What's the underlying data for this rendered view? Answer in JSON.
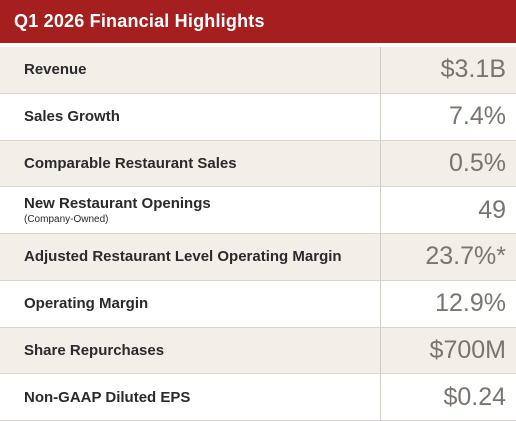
{
  "header": {
    "title": "Q1 2026 Financial Highlights"
  },
  "table": {
    "rows": [
      {
        "label": "Revenue",
        "value": "$3.1B"
      },
      {
        "label": "Sales Growth",
        "value": "7.4%"
      },
      {
        "label": "Comparable Restaurant Sales",
        "value": "0.5%"
      },
      {
        "label": "New Restaurant Openings",
        "note": "(Company-Owned)",
        "value": "49"
      },
      {
        "label": "Adjusted Restaurant Level Operating Margin",
        "value": "23.7%*"
      },
      {
        "label": "Operating Margin",
        "value": "12.9%"
      },
      {
        "label": "Share Repurchases",
        "value": "$700M"
      },
      {
        "label": "Non-GAAP Diluted EPS",
        "value": "$0.24"
      }
    ]
  }
}
